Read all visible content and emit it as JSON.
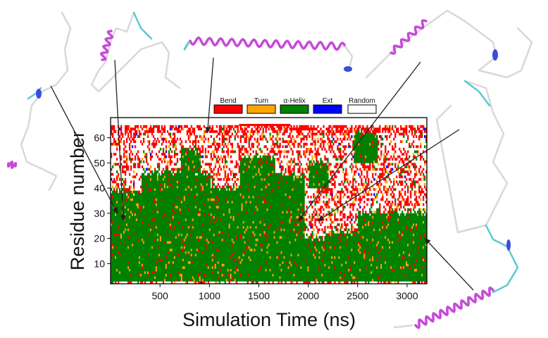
{
  "chart_data": {
    "type": "heatmap",
    "title": "",
    "xlabel": "Simulation Time (ns)",
    "ylabel": "Residue number",
    "xlim": [
      0,
      3200
    ],
    "ylim": [
      2,
      68
    ],
    "x_ticks": [
      500,
      1000,
      1500,
      2000,
      2500,
      3000
    ],
    "y_ticks": [
      10,
      20,
      30,
      40,
      50,
      60
    ],
    "grid": false,
    "legend_placement": "top",
    "categories": [
      {
        "label": "Bend",
        "color": "#ff0000"
      },
      {
        "label": "Turn",
        "color": "#ffa500"
      },
      {
        "label": "α-Helix",
        "color": "#008000"
      },
      {
        "label": "Ext",
        "color": "#0000ff"
      },
      {
        "label": "Random",
        "color": "#ffffff"
      }
    ],
    "bend_band_at_top": {
      "x_range": [
        1300,
        1820
      ],
      "residue": 65
    },
    "helix_regions_approx": [
      {
        "x": [
          0,
          300
        ],
        "residues": [
          3,
          38
        ]
      },
      {
        "x": [
          300,
          1000
        ],
        "residues": [
          3,
          46
        ]
      },
      {
        "x": [
          700,
          900
        ],
        "residues": [
          46,
          55
        ]
      },
      {
        "x": [
          1000,
          1300
        ],
        "residues": [
          3,
          40
        ]
      },
      {
        "x": [
          1300,
          1650
        ],
        "residues": [
          3,
          52
        ]
      },
      {
        "x": [
          1650,
          1950
        ],
        "residues": [
          3,
          45
        ]
      },
      {
        "x": [
          1950,
          2150
        ],
        "residues": [
          3,
          20
        ]
      },
      {
        "x": [
          2150,
          2500
        ],
        "residues": [
          3,
          22
        ]
      },
      {
        "x": [
          2000,
          2200
        ],
        "residues": [
          40,
          50
        ]
      },
      {
        "x": [
          2500,
          3200
        ],
        "residues": [
          3,
          30
        ]
      },
      {
        "x": [
          2450,
          2700
        ],
        "residues": [
          50,
          62
        ]
      }
    ],
    "snapshot_times": [
      70,
      130,
      980,
      1900,
      2100,
      3180
    ]
  },
  "colors": {
    "bend": "#ff0000",
    "turn": "#ffa500",
    "helix": "#008000",
    "ext": "#0000ff",
    "random": "#ffffff",
    "protein_helix": "#c64ad8",
    "protein_coil": "#d8d8d8",
    "protein_turn": "#5cc8d0"
  },
  "icons": [
    "protein-structure-icon"
  ]
}
